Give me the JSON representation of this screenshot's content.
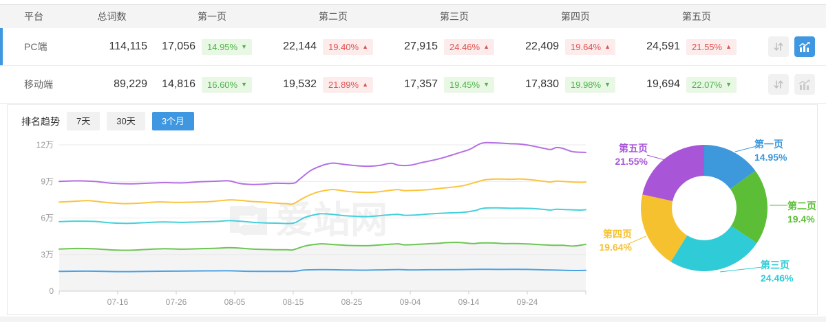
{
  "table": {
    "columns": [
      "平台",
      "总词数",
      "第一页",
      "第二页",
      "第三页",
      "第四页",
      "第五页"
    ],
    "icons": {
      "sort": "up-down-arrows",
      "trend": "line-bar-chart"
    },
    "rows": [
      {
        "platform": "PC端",
        "total": "114,115",
        "selected": true,
        "chart_active": true,
        "pages": [
          {
            "value": "17,056",
            "pct": "14.95%",
            "dir": "down"
          },
          {
            "value": "22,144",
            "pct": "19.40%",
            "dir": "up"
          },
          {
            "value": "27,915",
            "pct": "24.46%",
            "dir": "up"
          },
          {
            "value": "22,409",
            "pct": "19.64%",
            "dir": "up"
          },
          {
            "value": "24,591",
            "pct": "21.55%",
            "dir": "up"
          }
        ]
      },
      {
        "platform": "移动端",
        "total": "89,229",
        "selected": false,
        "chart_active": false,
        "pages": [
          {
            "value": "14,816",
            "pct": "16.60%",
            "dir": "down"
          },
          {
            "value": "19,532",
            "pct": "21.89%",
            "dir": "up"
          },
          {
            "value": "17,357",
            "pct": "19.45%",
            "dir": "down"
          },
          {
            "value": "17,830",
            "pct": "19.98%",
            "dir": "down"
          },
          {
            "value": "19,694",
            "pct": "22.07%",
            "dir": "down"
          }
        ]
      }
    ]
  },
  "trend": {
    "title": "排名趋势",
    "tabs": [
      {
        "label": "7天",
        "active": false
      },
      {
        "label": "30天",
        "active": false
      },
      {
        "label": "3个月",
        "active": true
      }
    ]
  },
  "watermark": "爱站网",
  "colors": {
    "accent_blue": "#3e97e0",
    "badge_down_green": "#4fb34a",
    "badge_up_red": "#e05252",
    "grid_line": "#e9e9e9",
    "axis_line": "#cccccc",
    "axis_text": "#999999",
    "area_fill": "#f4f4f4"
  },
  "chart_data": [
    {
      "type": "line",
      "title": "排名趋势 (3个月)",
      "stacked_cumulative": true,
      "x_axis": {
        "total_days": 90,
        "tick_days": [
          10,
          20,
          30,
          40,
          50,
          60,
          70,
          80
        ],
        "tick_labels": [
          "07-16",
          "07-26",
          "08-05",
          "08-15",
          "08-25",
          "09-04",
          "09-14",
          "09-24"
        ]
      },
      "y_axis": {
        "unit": "万",
        "values": [
          0,
          3,
          6,
          9,
          12
        ],
        "tick_labels": [
          "0",
          "3万",
          "6万",
          "9万",
          "12万"
        ],
        "max": 12
      },
      "grid": true,
      "series": [
        {
          "name": "第一页",
          "color": "#4ba2e3",
          "area": false,
          "keypoints": [
            [
              0,
              1.62
            ],
            [
              5,
              1.64
            ],
            [
              10,
              1.6
            ],
            [
              15,
              1.62
            ],
            [
              20,
              1.64
            ],
            [
              25,
              1.66
            ],
            [
              29,
              1.67
            ],
            [
              32,
              1.63
            ],
            [
              36,
              1.62
            ],
            [
              40,
              1.63
            ],
            [
              42,
              1.73
            ],
            [
              45,
              1.76
            ],
            [
              48,
              1.74
            ],
            [
              52,
              1.72
            ],
            [
              55,
              1.74
            ],
            [
              58,
              1.77
            ],
            [
              60,
              1.74
            ],
            [
              63,
              1.75
            ],
            [
              66,
              1.76
            ],
            [
              69,
              1.77
            ],
            [
              72,
              1.79
            ],
            [
              75,
              1.78
            ],
            [
              78,
              1.79
            ],
            [
              80,
              1.78
            ],
            [
              83,
              1.74
            ],
            [
              86,
              1.71
            ],
            [
              88,
              1.69
            ],
            [
              90,
              1.7
            ]
          ]
        },
        {
          "name": "第二页",
          "color": "#6cc653",
          "area": true,
          "keypoints": [
            [
              0,
              3.45
            ],
            [
              3,
              3.5
            ],
            [
              6,
              3.47
            ],
            [
              9,
              3.38
            ],
            [
              12,
              3.35
            ],
            [
              15,
              3.42
            ],
            [
              18,
              3.48
            ],
            [
              21,
              3.44
            ],
            [
              24,
              3.48
            ],
            [
              27,
              3.52
            ],
            [
              29,
              3.56
            ],
            [
              31,
              3.52
            ],
            [
              33,
              3.45
            ],
            [
              35,
              3.42
            ],
            [
              37,
              3.4
            ],
            [
              39,
              3.39
            ],
            [
              40,
              3.39
            ],
            [
              42,
              3.7
            ],
            [
              44,
              3.85
            ],
            [
              45,
              3.88
            ],
            [
              47,
              3.82
            ],
            [
              49,
              3.76
            ],
            [
              51,
              3.73
            ],
            [
              53,
              3.73
            ],
            [
              55,
              3.8
            ],
            [
              57,
              3.86
            ],
            [
              58,
              3.88
            ],
            [
              59,
              3.8
            ],
            [
              61,
              3.83
            ],
            [
              63,
              3.88
            ],
            [
              65,
              3.93
            ],
            [
              66,
              3.97
            ],
            [
              68,
              4.0
            ],
            [
              70,
              3.92
            ],
            [
              71,
              3.9
            ],
            [
              72,
              3.95
            ],
            [
              74,
              3.95
            ],
            [
              76,
              3.9
            ],
            [
              78,
              3.9
            ],
            [
              80,
              3.87
            ],
            [
              82,
              3.82
            ],
            [
              84,
              3.77
            ],
            [
              86,
              3.76
            ],
            [
              88,
              3.7
            ],
            [
              90,
              3.84
            ]
          ]
        },
        {
          "name": "第三页",
          "color": "#43d0db",
          "area": false,
          "keypoints": [
            [
              0,
              5.7
            ],
            [
              3,
              5.74
            ],
            [
              6,
              5.72
            ],
            [
              9,
              5.6
            ],
            [
              12,
              5.56
            ],
            [
              15,
              5.63
            ],
            [
              18,
              5.68
            ],
            [
              21,
              5.64
            ],
            [
              24,
              5.68
            ],
            [
              27,
              5.72
            ],
            [
              29,
              5.78
            ],
            [
              31,
              5.73
            ],
            [
              33,
              5.65
            ],
            [
              35,
              5.6
            ],
            [
              37,
              5.58
            ],
            [
              40,
              5.58
            ],
            [
              42,
              6.05
            ],
            [
              44,
              6.3
            ],
            [
              45,
              6.35
            ],
            [
              47,
              6.28
            ],
            [
              49,
              6.18
            ],
            [
              51,
              6.13
            ],
            [
              53,
              6.12
            ],
            [
              55,
              6.2
            ],
            [
              57,
              6.28
            ],
            [
              58,
              6.3
            ],
            [
              59,
              6.22
            ],
            [
              61,
              6.25
            ],
            [
              63,
              6.32
            ],
            [
              65,
              6.38
            ],
            [
              67,
              6.42
            ],
            [
              69,
              6.46
            ],
            [
              71,
              6.6
            ],
            [
              72,
              6.75
            ],
            [
              73,
              6.82
            ],
            [
              75,
              6.83
            ],
            [
              77,
              6.8
            ],
            [
              79,
              6.8
            ],
            [
              81,
              6.78
            ],
            [
              83,
              6.7
            ],
            [
              84,
              6.65
            ],
            [
              85,
              6.72
            ],
            [
              87,
              6.68
            ],
            [
              89,
              6.65
            ],
            [
              90,
              6.68
            ]
          ]
        },
        {
          "name": "第四页",
          "color": "#fbc43d",
          "area": false,
          "keypoints": [
            [
              0,
              7.3
            ],
            [
              3,
              7.38
            ],
            [
              5,
              7.42
            ],
            [
              8,
              7.28
            ],
            [
              11,
              7.18
            ],
            [
              14,
              7.22
            ],
            [
              17,
              7.32
            ],
            [
              20,
              7.28
            ],
            [
              23,
              7.3
            ],
            [
              26,
              7.35
            ],
            [
              29,
              7.48
            ],
            [
              31,
              7.44
            ],
            [
              33,
              7.35
            ],
            [
              35,
              7.3
            ],
            [
              37,
              7.22
            ],
            [
              39,
              7.17
            ],
            [
              40,
              7.16
            ],
            [
              42,
              7.7
            ],
            [
              44,
              8.1
            ],
            [
              46,
              8.3
            ],
            [
              47,
              8.33
            ],
            [
              49,
              8.2
            ],
            [
              51,
              8.12
            ],
            [
              53,
              8.1
            ],
            [
              55,
              8.17
            ],
            [
              57,
              8.3
            ],
            [
              58,
              8.33
            ],
            [
              59,
              8.25
            ],
            [
              61,
              8.27
            ],
            [
              63,
              8.32
            ],
            [
              65,
              8.42
            ],
            [
              67,
              8.52
            ],
            [
              69,
              8.65
            ],
            [
              71,
              8.9
            ],
            [
              72,
              9.05
            ],
            [
              73,
              9.15
            ],
            [
              75,
              9.2
            ],
            [
              77,
              9.18
            ],
            [
              79,
              9.2
            ],
            [
              81,
              9.12
            ],
            [
              83,
              9.0
            ],
            [
              84,
              8.95
            ],
            [
              85,
              9.03
            ],
            [
              87,
              8.97
            ],
            [
              89,
              8.93
            ],
            [
              90,
              8.95
            ]
          ]
        },
        {
          "name": "第五页",
          "color": "#b46fe3",
          "area": false,
          "keypoints": [
            [
              0,
              9.0
            ],
            [
              3,
              9.05
            ],
            [
              6,
              9.0
            ],
            [
              9,
              8.85
            ],
            [
              12,
              8.8
            ],
            [
              15,
              8.85
            ],
            [
              18,
              8.9
            ],
            [
              21,
              8.88
            ],
            [
              24,
              8.97
            ],
            [
              27,
              9.02
            ],
            [
              29,
              9.05
            ],
            [
              31,
              8.82
            ],
            [
              33,
              8.75
            ],
            [
              35,
              8.78
            ],
            [
              37,
              8.85
            ],
            [
              40,
              8.85
            ],
            [
              41,
              9.15
            ],
            [
              43,
              9.9
            ],
            [
              45,
              10.32
            ],
            [
              46,
              10.45
            ],
            [
              47,
              10.5
            ],
            [
              49,
              10.38
            ],
            [
              51,
              10.28
            ],
            [
              53,
              10.25
            ],
            [
              55,
              10.33
            ],
            [
              56,
              10.45
            ],
            [
              57,
              10.48
            ],
            [
              58,
              10.33
            ],
            [
              60,
              10.33
            ],
            [
              62,
              10.55
            ],
            [
              64,
              10.75
            ],
            [
              66,
              11.0
            ],
            [
              68,
              11.3
            ],
            [
              70,
              11.6
            ],
            [
              71,
              11.85
            ],
            [
              72,
              12.1
            ],
            [
              73,
              12.18
            ],
            [
              75,
              12.15
            ],
            [
              77,
              12.1
            ],
            [
              79,
              12.05
            ],
            [
              81,
              11.9
            ],
            [
              83,
              11.7
            ],
            [
              84,
              11.62
            ],
            [
              85,
              11.78
            ],
            [
              86,
              11.72
            ],
            [
              87,
              11.55
            ],
            [
              88,
              11.42
            ],
            [
              90,
              11.38
            ]
          ]
        }
      ]
    },
    {
      "type": "donut",
      "start_angle_deg": 0,
      "clockwise": true,
      "inner_radius_ratio": 0.51,
      "slices": [
        {
          "label": "第一页",
          "pct": 14.95,
          "pct_label": "14.95%",
          "color": "#3d98dc"
        },
        {
          "label": "第二页",
          "pct": 19.4,
          "pct_label": "19.4%",
          "color": "#5bbe36"
        },
        {
          "label": "第三页",
          "pct": 24.46,
          "pct_label": "24.46%",
          "color": "#2fcbd6"
        },
        {
          "label": "第四页",
          "pct": 19.64,
          "pct_label": "19.64%",
          "color": "#f6c12f"
        },
        {
          "label": "第五页",
          "pct": 21.55,
          "pct_label": "21.55%",
          "color": "#a855d8"
        }
      ]
    }
  ]
}
